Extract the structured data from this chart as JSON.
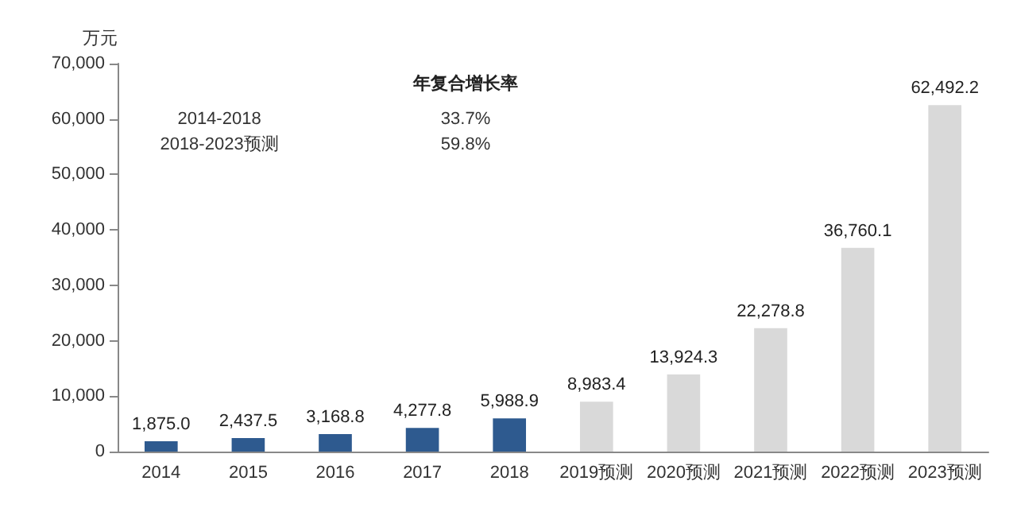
{
  "chart_data": {
    "type": "bar",
    "ylabel": "万元",
    "categories": [
      "2014",
      "2015",
      "2016",
      "2017",
      "2018",
      "2019预测",
      "2020预测",
      "2021预测",
      "2022预测",
      "2023预测"
    ],
    "values": [
      1875.0,
      2437.5,
      3168.8,
      4277.8,
      5988.9,
      8983.4,
      13924.3,
      22278.8,
      36760.1,
      62492.2
    ],
    "value_labels": [
      "1,875.0",
      "2,437.5",
      "3,168.8",
      "4,277.8",
      "5,988.9",
      "8,983.4",
      "13,924.3",
      "22,278.8",
      "36,760.1",
      "62,492.2"
    ],
    "colors": [
      "#2e5a8f",
      "#2e5a8f",
      "#2e5a8f",
      "#2e5a8f",
      "#2e5a8f",
      "#d9d9d9",
      "#d9d9d9",
      "#d9d9d9",
      "#d9d9d9",
      "#d9d9d9"
    ],
    "ylim": [
      0,
      70000
    ],
    "yticks": [
      {
        "value": 0,
        "label": "0"
      },
      {
        "value": 10000,
        "label": "10,000"
      },
      {
        "value": 20000,
        "label": "20,000"
      },
      {
        "value": 30000,
        "label": "30,000"
      },
      {
        "value": 40000,
        "label": "40,000"
      },
      {
        "value": 50000,
        "label": "50,000"
      },
      {
        "value": 60000,
        "label": "60,000"
      },
      {
        "value": 70000,
        "label": "70,000"
      }
    ],
    "annotations": [
      "年复合增长率",
      "2014-2018",
      "33.7%",
      "2018-2023预测",
      "59.8%"
    ],
    "grid": false
  }
}
